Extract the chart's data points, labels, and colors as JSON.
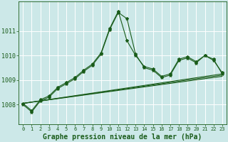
{
  "background_color": "#cce8e8",
  "plot_bg_color": "#cce8e8",
  "grid_color": "#ffffff",
  "line_color": "#1a5c1a",
  "xlabel": "Graphe pression niveau de la mer (hPa)",
  "xlabel_fontsize": 7,
  "xlim": [
    -0.5,
    23.5
  ],
  "ylim": [
    1007.2,
    1012.2
  ],
  "yticks": [
    1008,
    1009,
    1010,
    1011
  ],
  "xticks": [
    0,
    1,
    2,
    3,
    4,
    5,
    6,
    7,
    8,
    9,
    10,
    11,
    12,
    13,
    14,
    15,
    16,
    17,
    18,
    19,
    20,
    21,
    22,
    23
  ],
  "series": [
    {
      "x": [
        0,
        1,
        2,
        3,
        4,
        5,
        6,
        7,
        8,
        9,
        10,
        11,
        12,
        13,
        14,
        15,
        16,
        17,
        18,
        19,
        20,
        21,
        22,
        23
      ],
      "y": [
        1008.0,
        1007.7,
        1008.15,
        1008.3,
        1008.65,
        1008.85,
        1009.05,
        1009.35,
        1009.6,
        1010.05,
        1011.05,
        1011.75,
        1011.5,
        1010.05,
        1009.5,
        1009.4,
        1009.1,
        1009.2,
        1009.8,
        1009.9,
        1009.7,
        1010.0,
        1009.8,
        1009.3
      ],
      "marker": true
    },
    {
      "x": [
        0,
        1,
        2,
        3,
        4,
        5,
        6,
        7,
        8,
        9,
        10,
        11,
        12,
        13,
        14,
        15,
        16,
        17,
        18,
        19,
        20,
        21,
        22,
        23
      ],
      "y": [
        1008.05,
        1007.75,
        1008.2,
        1008.35,
        1008.7,
        1008.9,
        1009.1,
        1009.4,
        1009.65,
        1010.1,
        1011.1,
        1011.8,
        1010.6,
        1010.0,
        1009.55,
        1009.45,
        1009.15,
        1009.25,
        1009.85,
        1009.95,
        1009.75,
        1010.0,
        1009.85,
        1009.25
      ],
      "marker": true
    },
    {
      "x": [
        0,
        23
      ],
      "y": [
        1008.05,
        1009.15
      ],
      "marker": false
    },
    {
      "x": [
        0,
        23
      ],
      "y": [
        1008.05,
        1009.2
      ],
      "marker": false
    },
    {
      "x": [
        0,
        23
      ],
      "y": [
        1008.05,
        1009.25
      ],
      "marker": false
    }
  ]
}
